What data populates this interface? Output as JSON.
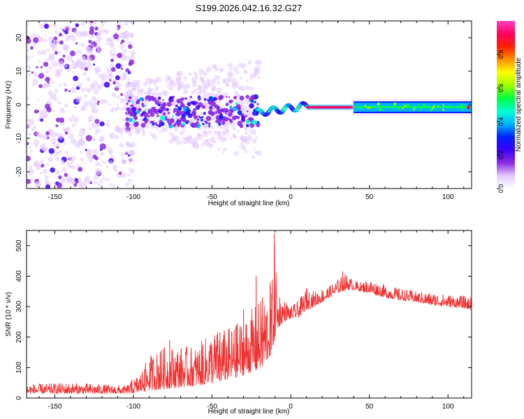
{
  "title": "S199.2026.042.16.32.G27",
  "chart_data": [
    {
      "type": "heatmap",
      "name": "spectrogram",
      "xlabel": "Height of straight line (km)",
      "ylabel": "Frequency (Hz)",
      "xlim": [
        -168,
        115
      ],
      "ylim": [
        -25,
        25
      ],
      "xticks": [
        -150,
        -100,
        -50,
        0,
        50,
        100
      ],
      "yticks": [
        -20,
        -10,
        0,
        10,
        20
      ],
      "colorbar": {
        "label": "Normalized spectral amplitude",
        "range": [
          0,
          1
        ],
        "ticks": [
          0.0,
          0.2,
          0.4,
          0.6,
          0.8
        ],
        "tick_labels": [
          "0.0",
          "0.2",
          "0.4",
          "0.6",
          "0.8"
        ],
        "colors": [
          "#ffffff",
          "#e4c8ff",
          "#8a2be2",
          "#3b00ff",
          "#0020ff",
          "#00b4ff",
          "#00ffd0",
          "#00ff40",
          "#a0ff00",
          "#ffff00",
          "#ff9000",
          "#ff2000",
          "#ff0060",
          "#ff40c0"
        ]
      },
      "regions": [
        {
          "x_range": [
            -168,
            -100
          ],
          "freq_range": [
            -25,
            25
          ],
          "amplitude": 0.05,
          "pattern": "scattered noise"
        },
        {
          "x_range": [
            -105,
            -20
          ],
          "freq_range": [
            -8,
            6
          ],
          "amplitude": 0.15,
          "pattern": "diffuse noisy band"
        },
        {
          "x_range": [
            -23,
            10
          ],
          "freq_range": [
            -4,
            2
          ],
          "amplitude": 0.4,
          "pattern": "wavy trace"
        },
        {
          "x_range": [
            10,
            40
          ],
          "freq_range": [
            -1.5,
            0
          ],
          "amplitude": 0.95,
          "pattern": "strong carrier"
        },
        {
          "x_range": [
            40,
            115
          ],
          "freq_range": [
            -2.5,
            1
          ],
          "amplitude": 0.45,
          "pattern": "carrier band"
        }
      ]
    },
    {
      "type": "line",
      "name": "snr",
      "xlabel": "Height of straight line (km)",
      "ylabel": "SNR (10 * v/v)",
      "xlim": [
        -168,
        115
      ],
      "ylim": [
        0,
        550
      ],
      "xticks": [
        -150,
        -100,
        -50,
        0,
        50,
        100
      ],
      "yticks": [
        0,
        100,
        200,
        300,
        400,
        500
      ],
      "color": "#ee3333",
      "series": [
        {
          "name": "SNR",
          "envelope": {
            "x": [
              -168,
              -140,
              -120,
              -105,
              -100,
              -95,
              -90,
              -80,
              -70,
              -60,
              -50,
              -40,
              -30,
              -25,
              -20,
              -15,
              -12,
              -10,
              -8,
              -5,
              0,
              5,
              10,
              15,
              20,
              25,
              30,
              35,
              40,
              45,
              50,
              60,
              70,
              80,
              90,
              100,
              110,
              115
            ],
            "baseline": [
              15,
              15,
              15,
              15,
              16,
              20,
              25,
              30,
              35,
              40,
              50,
              60,
              75,
              85,
              95,
              120,
              150,
              200,
              230,
              250,
              260,
              265,
              290,
              300,
              315,
              330,
              345,
              355,
              355,
              350,
              345,
              330,
              320,
              315,
              305,
              300,
              295,
              290
            ],
            "peak": [
              45,
              50,
              45,
              40,
              60,
              90,
              140,
              170,
              170,
              170,
              220,
              230,
              260,
              290,
              320,
              350,
              380,
              535,
              320,
              330,
              300,
              320,
              360,
              350,
              360,
              370,
              390,
              410,
              385,
              380,
              390,
              370,
              360,
              350,
              345,
              340,
              335,
              330
            ],
            "spikes": [
              [
                -101,
                60
              ],
              [
                -93,
                95
              ],
              [
                -83,
                150
              ],
              [
                -77,
                190
              ],
              [
                -56,
                175
              ],
              [
                -45,
                215
              ],
              [
                -35,
                235
              ],
              [
                -30,
                290
              ],
              [
                -22,
                400
              ],
              [
                -18,
                330
              ],
              [
                -13,
                380
              ],
              [
                -10.5,
                540
              ],
              [
                -7,
                330
              ],
              [
                10,
                360
              ],
              [
                33,
                415
              ]
            ]
          }
        }
      ]
    }
  ]
}
